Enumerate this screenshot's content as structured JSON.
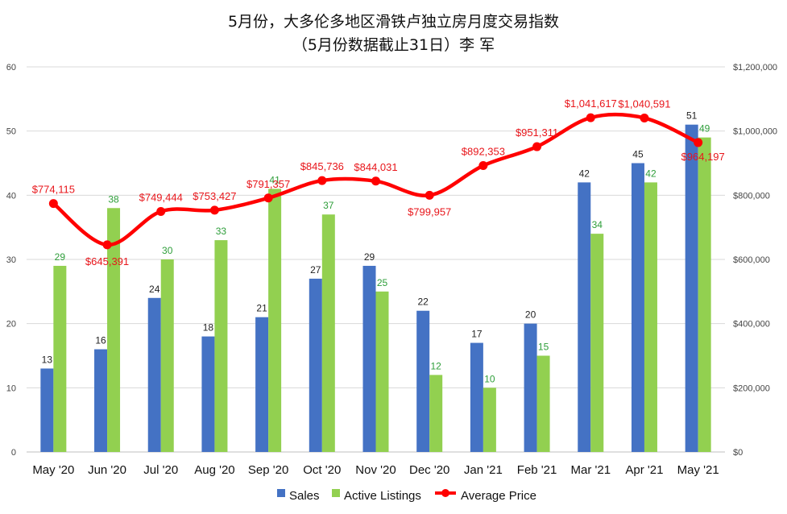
{
  "chart_data": {
    "type": "bar",
    "title": "5月份，大多伦多地区滑铁卢独立房月度交易指数",
    "subtitle": "（5月份数据截止31日）李 军",
    "categories": [
      "May '20",
      "Jun '20",
      "Jul '20",
      "Aug '20",
      "Sep '20",
      "Oct '20",
      "Nov '20",
      "Dec '20",
      "Jan '21",
      "Feb '21",
      "Mar '21",
      "Apr '21",
      "May '21"
    ],
    "series": [
      {
        "name": "Sales",
        "type": "bar",
        "axis": "left",
        "color": "#4472c4",
        "values": [
          13,
          16,
          24,
          18,
          21,
          27,
          29,
          22,
          17,
          20,
          42,
          45,
          51
        ]
      },
      {
        "name": "Active Listings",
        "type": "bar",
        "axis": "left",
        "color": "#92d050",
        "values": [
          29,
          38,
          30,
          33,
          41,
          37,
          25,
          12,
          10,
          15,
          34,
          42,
          49
        ]
      },
      {
        "name": "Average Price",
        "type": "line",
        "axis": "right",
        "color": "#ff0000",
        "values": [
          774115,
          645391,
          749444,
          753427,
          791357,
          845736,
          844031,
          799957,
          892353,
          951311,
          1041617,
          1040591,
          964197
        ],
        "labels": [
          "$774,115",
          "$645,391",
          "$749,444",
          "$753,427",
          "$791,357",
          "$845,736",
          "$844,031",
          "$799,957",
          "$892,353",
          "$951,311",
          "$1,041,617",
          "$1,040,591",
          "$964,197"
        ]
      }
    ],
    "y_left": {
      "min": 0,
      "max": 60,
      "ticks": [
        "0",
        "10",
        "20",
        "30",
        "40",
        "50",
        "60"
      ]
    },
    "y_right": {
      "min": 0,
      "max": 1200000,
      "ticks": [
        "$0",
        "$200,000",
        "$400,000",
        "$600,000",
        "$800,000",
        "$1,000,000",
        "$1,200,000"
      ]
    },
    "grid": true,
    "legend": {
      "position": "bottom",
      "entries": [
        "Sales",
        "Active Listings",
        "Average Price"
      ]
    }
  }
}
